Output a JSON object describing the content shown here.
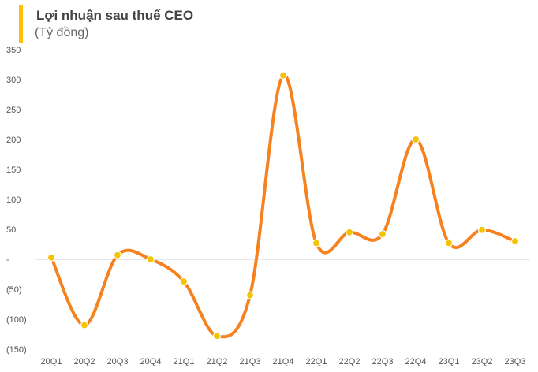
{
  "chart_data": {
    "type": "line",
    "title": "Lợi nhuận sau thuế CEO",
    "subtitle": "(Tỷ đồng)",
    "categories": [
      "20Q1",
      "20Q2",
      "20Q3",
      "20Q4",
      "21Q1",
      "21Q2",
      "21Q3",
      "21Q4",
      "22Q1",
      "22Q2",
      "22Q3",
      "22Q4",
      "23Q1",
      "23Q2",
      "23Q3"
    ],
    "values": [
      3,
      -110,
      7,
      0,
      -37,
      -128,
      -60,
      307,
      27,
      45,
      42,
      200,
      27,
      49,
      30
    ],
    "ylim": [
      -150,
      350
    ],
    "yticks": [
      350,
      300,
      250,
      200,
      150,
      100,
      50,
      0,
      -50,
      -100,
      -150
    ],
    "ytick_labels": [
      "350",
      "300",
      "250",
      "200",
      "150",
      "100",
      "50",
      "-",
      "(50)",
      "(100)",
      "(150)"
    ],
    "xlabel": "",
    "ylabel": "",
    "grid": false,
    "zero_line": true,
    "line_color": "#F6821F",
    "marker_color": "#F5C400",
    "accent_color": "#FFC000"
  }
}
